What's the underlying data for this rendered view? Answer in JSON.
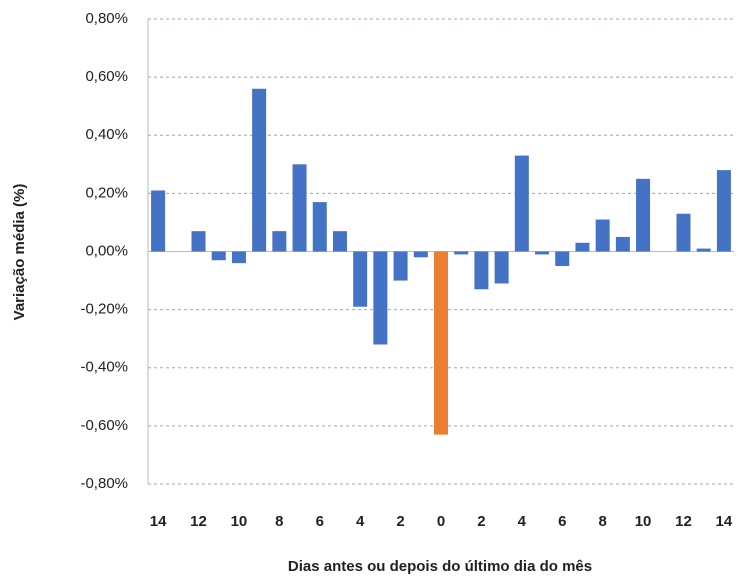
{
  "chart_data": {
    "type": "bar",
    "x_label": "Dias antes ou depois do último dia do mês",
    "y_label": "Variação média (%)",
    "categories": [
      "14",
      null,
      "12",
      null,
      "10",
      null,
      "8",
      null,
      "6",
      null,
      "4",
      null,
      "2",
      null,
      "0",
      null,
      "2",
      null,
      "4",
      null,
      "6",
      null,
      "8",
      null,
      "10",
      null,
      "12",
      null,
      "14"
    ],
    "values": [
      0.21,
      0.0,
      0.07,
      -0.03,
      -0.04,
      0.56,
      0.07,
      0.3,
      0.17,
      0.07,
      -0.19,
      -0.32,
      -0.1,
      -0.02,
      -0.63,
      -0.01,
      -0.13,
      -0.11,
      0.33,
      -0.01,
      -0.05,
      0.03,
      0.11,
      0.05,
      0.25,
      0.0,
      0.13,
      0.01,
      0.28
    ],
    "colors": [
      "#4472c4",
      "#4472c4",
      "#4472c4",
      "#4472c4",
      "#4472c4",
      "#4472c4",
      "#4472c4",
      "#4472c4",
      "#4472c4",
      "#4472c4",
      "#4472c4",
      "#4472c4",
      "#4472c4",
      "#4472c4",
      "#ed7d31",
      "#4472c4",
      "#4472c4",
      "#4472c4",
      "#4472c4",
      "#4472c4",
      "#4472c4",
      "#4472c4",
      "#4472c4",
      "#4472c4",
      "#4472c4",
      "#4472c4",
      "#4472c4",
      "#4472c4",
      "#4472c4"
    ],
    "ylim": [
      -0.8,
      0.8
    ],
    "yticks": [
      {
        "value": -0.8,
        "label": "-0,80%"
      },
      {
        "value": -0.6,
        "label": "-0,60%"
      },
      {
        "value": -0.4,
        "label": "-0,40%"
      },
      {
        "value": -0.2,
        "label": "-0,20%"
      },
      {
        "value": 0,
        "label": "0,00%"
      },
      {
        "value": 0.2,
        "label": "0,20%"
      },
      {
        "value": 0.4,
        "label": "0,40%"
      },
      {
        "value": 0.6,
        "label": "0,60%"
      },
      {
        "value": 0.8,
        "label": "0,80%"
      }
    ],
    "grid": true
  }
}
